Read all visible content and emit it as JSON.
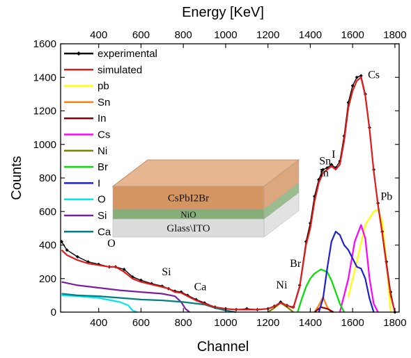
{
  "chart_data": {
    "type": "line",
    "title": "",
    "xlabel": "Channel",
    "ylabel": "Counts",
    "x2label": "Energy [KeV]",
    "xlim": [
      220,
      1820
    ],
    "ylim": [
      0,
      1600
    ],
    "x2lim": [
      220,
      1820
    ],
    "xticks": [
      400,
      600,
      800,
      1000,
      1200,
      1400,
      1600,
      1800
    ],
    "x2ticks": [
      400,
      600,
      800,
      1000,
      1200,
      1400,
      1600,
      1800
    ],
    "yticks": [
      0,
      200,
      400,
      600,
      800,
      1000,
      1200,
      1400,
      1600
    ],
    "legend_position": "top-left",
    "series": [
      {
        "name": "experimental",
        "color": "#000000",
        "marker": "diamond",
        "x": [
          225,
          250,
          300,
          350,
          400,
          450,
          480,
          520,
          560,
          600,
          650,
          700,
          730,
          760,
          790,
          820,
          860,
          900,
          950,
          1000,
          1050,
          1100,
          1150,
          1200,
          1230,
          1260,
          1290,
          1320,
          1350,
          1380,
          1400,
          1420,
          1440,
          1460,
          1480,
          1500,
          1520,
          1540,
          1560,
          1580,
          1600,
          1620,
          1640,
          1660,
          1680,
          1700,
          1720,
          1740,
          1760,
          1780,
          1800
        ],
        "y": [
          420,
          370,
          330,
          300,
          285,
          270,
          270,
          255,
          210,
          190,
          170,
          155,
          140,
          125,
          120,
          100,
          75,
          55,
          30,
          20,
          15,
          20,
          15,
          20,
          35,
          60,
          40,
          30,
          160,
          420,
          530,
          690,
          790,
          850,
          860,
          880,
          860,
          900,
          1050,
          1250,
          1350,
          1400,
          1410,
          1300,
          1100,
          850,
          650,
          480,
          300,
          120,
          0
        ]
      },
      {
        "name": "simulated",
        "color": "#e31a1c",
        "x": [
          225,
          250,
          300,
          350,
          400,
          450,
          480,
          520,
          560,
          600,
          650,
          700,
          730,
          760,
          790,
          820,
          860,
          900,
          950,
          1000,
          1050,
          1100,
          1150,
          1200,
          1230,
          1260,
          1290,
          1320,
          1350,
          1380,
          1400,
          1420,
          1440,
          1460,
          1480,
          1500,
          1520,
          1540,
          1560,
          1580,
          1600,
          1620,
          1640,
          1660,
          1680,
          1700,
          1720,
          1740,
          1760,
          1780,
          1800
        ],
        "y": [
          370,
          340,
          310,
          290,
          280,
          270,
          270,
          240,
          200,
          180,
          165,
          150,
          140,
          120,
          115,
          95,
          70,
          50,
          30,
          20,
          15,
          15,
          15,
          20,
          35,
          55,
          40,
          25,
          150,
          400,
          500,
          660,
          770,
          830,
          850,
          870,
          850,
          880,
          1020,
          1220,
          1320,
          1380,
          1400,
          1290,
          1090,
          840,
          640,
          470,
          280,
          100,
          0
        ]
      },
      {
        "name": "pb",
        "color": "#ffff00",
        "x": [
          1580,
          1620,
          1660,
          1700,
          1720,
          1740,
          1760,
          1780
        ],
        "y": [
          90,
          300,
          520,
          600,
          610,
          540,
          300,
          0
        ]
      },
      {
        "name": "Sn",
        "color": "#ff7f0e",
        "x": [
          1420,
          1440,
          1460,
          1480,
          1500
        ],
        "y": [
          0,
          40,
          90,
          30,
          0
        ]
      },
      {
        "name": "In",
        "color": "#8b0000",
        "x": [
          1420,
          1450,
          1480,
          1510
        ],
        "y": [
          0,
          30,
          20,
          0
        ]
      },
      {
        "name": "Cs",
        "color": "#ff00ff",
        "x": [
          1540,
          1580,
          1610,
          1640,
          1660,
          1680,
          1700,
          1720
        ],
        "y": [
          0,
          200,
          420,
          520,
          440,
          200,
          50,
          0
        ]
      },
      {
        "name": "Ni",
        "color": "#808000",
        "x": [
          1200,
          1230,
          1260,
          1290,
          1320
        ],
        "y": [
          0,
          25,
          55,
          30,
          0
        ]
      },
      {
        "name": "Br",
        "color": "#00e000",
        "x": [
          1340,
          1360,
          1380,
          1400,
          1420,
          1450,
          1480,
          1500,
          1520,
          1540,
          1560
        ],
        "y": [
          0,
          80,
          150,
          200,
          230,
          255,
          240,
          190,
          120,
          50,
          0
        ]
      },
      {
        "name": "I",
        "color": "#1f1fd0",
        "x": [
          1440,
          1460,
          1480,
          1500,
          1520,
          1540,
          1560,
          1580,
          1600,
          1620,
          1640,
          1660,
          1680,
          1700
        ],
        "y": [
          0,
          80,
          260,
          420,
          480,
          460,
          400,
          370,
          320,
          270,
          260,
          200,
          80,
          0
        ]
      },
      {
        "name": "O",
        "color": "#00e5ee",
        "x": [
          225,
          300,
          400,
          500,
          540,
          560,
          580
        ],
        "y": [
          100,
          95,
          85,
          60,
          40,
          10,
          0
        ]
      },
      {
        "name": "Si",
        "color": "#7b1fa2",
        "x": [
          225,
          300,
          400,
          500,
          600,
          700,
          760,
          790,
          810,
          830
        ],
        "y": [
          180,
          160,
          145,
          130,
          120,
          110,
          95,
          60,
          20,
          0
        ]
      },
      {
        "name": "Ca",
        "color": "#008080",
        "x": [
          225,
          300,
          400,
          500,
          600,
          700,
          800,
          900,
          950,
          1000,
          1050
        ],
        "y": [
          110,
          100,
          95,
          85,
          75,
          70,
          60,
          45,
          25,
          10,
          0
        ]
      }
    ],
    "annotations": [
      {
        "text": "Cs",
        "x": 1700,
        "y": 1395
      },
      {
        "text": "I",
        "x": 1510,
        "y": 920
      },
      {
        "text": "Sn",
        "x": 1470,
        "y": 880
      },
      {
        "text": "In",
        "x": 1465,
        "y": 810
      },
      {
        "text": "Pb",
        "x": 1760,
        "y": 670
      },
      {
        "text": "Br",
        "x": 1330,
        "y": 270
      },
      {
        "text": "Ni",
        "x": 1265,
        "y": 140
      },
      {
        "text": "Ca",
        "x": 880,
        "y": 130
      },
      {
        "text": "Si",
        "x": 720,
        "y": 220
      },
      {
        "text": "O",
        "x": 460,
        "y": 390
      }
    ]
  },
  "inset": {
    "layers": [
      {
        "label": "CsPbI2Br",
        "color": "#d08a52"
      },
      {
        "label": "NiO",
        "color": "#7aa56a"
      },
      {
        "label": "Glass\\ITO",
        "color": "#d8d8d8"
      }
    ]
  }
}
